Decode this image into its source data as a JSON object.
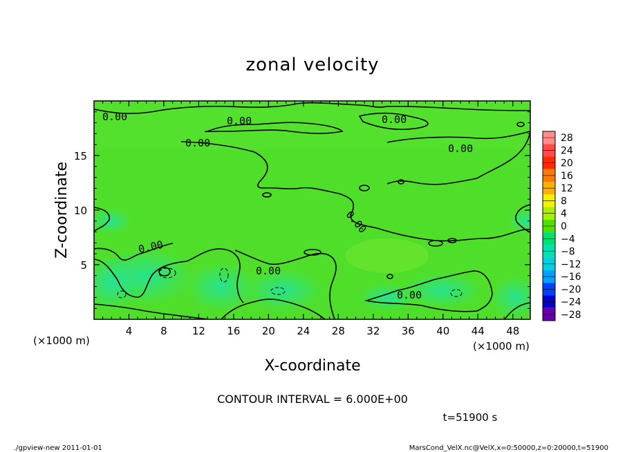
{
  "chart_data": {
    "type": "heatmap",
    "title": "zonal velocity",
    "xlabel": "X-coordinate",
    "ylabel": "Z-coordinate",
    "x_unit": "(×1000 m)",
    "y_unit": "(×1000 m)",
    "xlim": [
      0,
      50
    ],
    "ylim": [
      0,
      20
    ],
    "x_ticks": [
      4,
      8,
      12,
      16,
      20,
      24,
      28,
      32,
      36,
      40,
      44,
      48
    ],
    "y_ticks": [
      5,
      10,
      15
    ],
    "contour_interval_label": "CONTOUR INTERVAL = 6.000E+00",
    "time_label": "t=51900 s",
    "contour_label": "0.00",
    "colorbar": {
      "levels": [
        28,
        24,
        20,
        16,
        12,
        8,
        4,
        0,
        -4,
        -8,
        -12,
        -16,
        -20,
        -24,
        -28
      ],
      "colors": [
        "#ff8c8c",
        "#ff4a4a",
        "#ff2a00",
        "#ff7a00",
        "#ffb000",
        "#f0f000",
        "#a8f000",
        "#50e000",
        "#00e070",
        "#00e0b0",
        "#00d0e0",
        "#00a0ff",
        "#0040ff",
        "#0000c8",
        "#6600aa"
      ]
    }
  },
  "footer": {
    "left": "./gpview-new   2011-01-01",
    "right": "MarsCond_VelX.nc@VelX,x=0:50000,z=0:20000,t=51900"
  }
}
